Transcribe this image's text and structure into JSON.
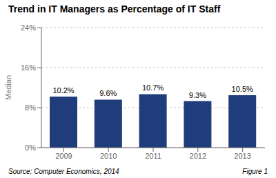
{
  "chart_data": {
    "type": "bar",
    "title": "Trend in IT Managers as Percentage of IT Staff",
    "categories": [
      "2009",
      "2010",
      "2011",
      "2012",
      "2013"
    ],
    "values": [
      10.2,
      9.6,
      10.7,
      9.3,
      10.5
    ],
    "value_labels": [
      "10.2%",
      "9.6%",
      "10.7%",
      "9.3%",
      "10.5%"
    ],
    "data_labels": true,
    "color": "#1F3D7A",
    "ylabel": "Median",
    "ylim": [
      0,
      24
    ],
    "yticks": [
      {
        "value": 0,
        "label": "0%"
      },
      {
        "value": 8,
        "label": "8%"
      },
      {
        "value": 16,
        "label": "16%"
      },
      {
        "value": 24,
        "label": "24%"
      }
    ],
    "grid": true,
    "annotations": [
      "Source: Computer Economics, 2014",
      "Figure 1"
    ]
  }
}
